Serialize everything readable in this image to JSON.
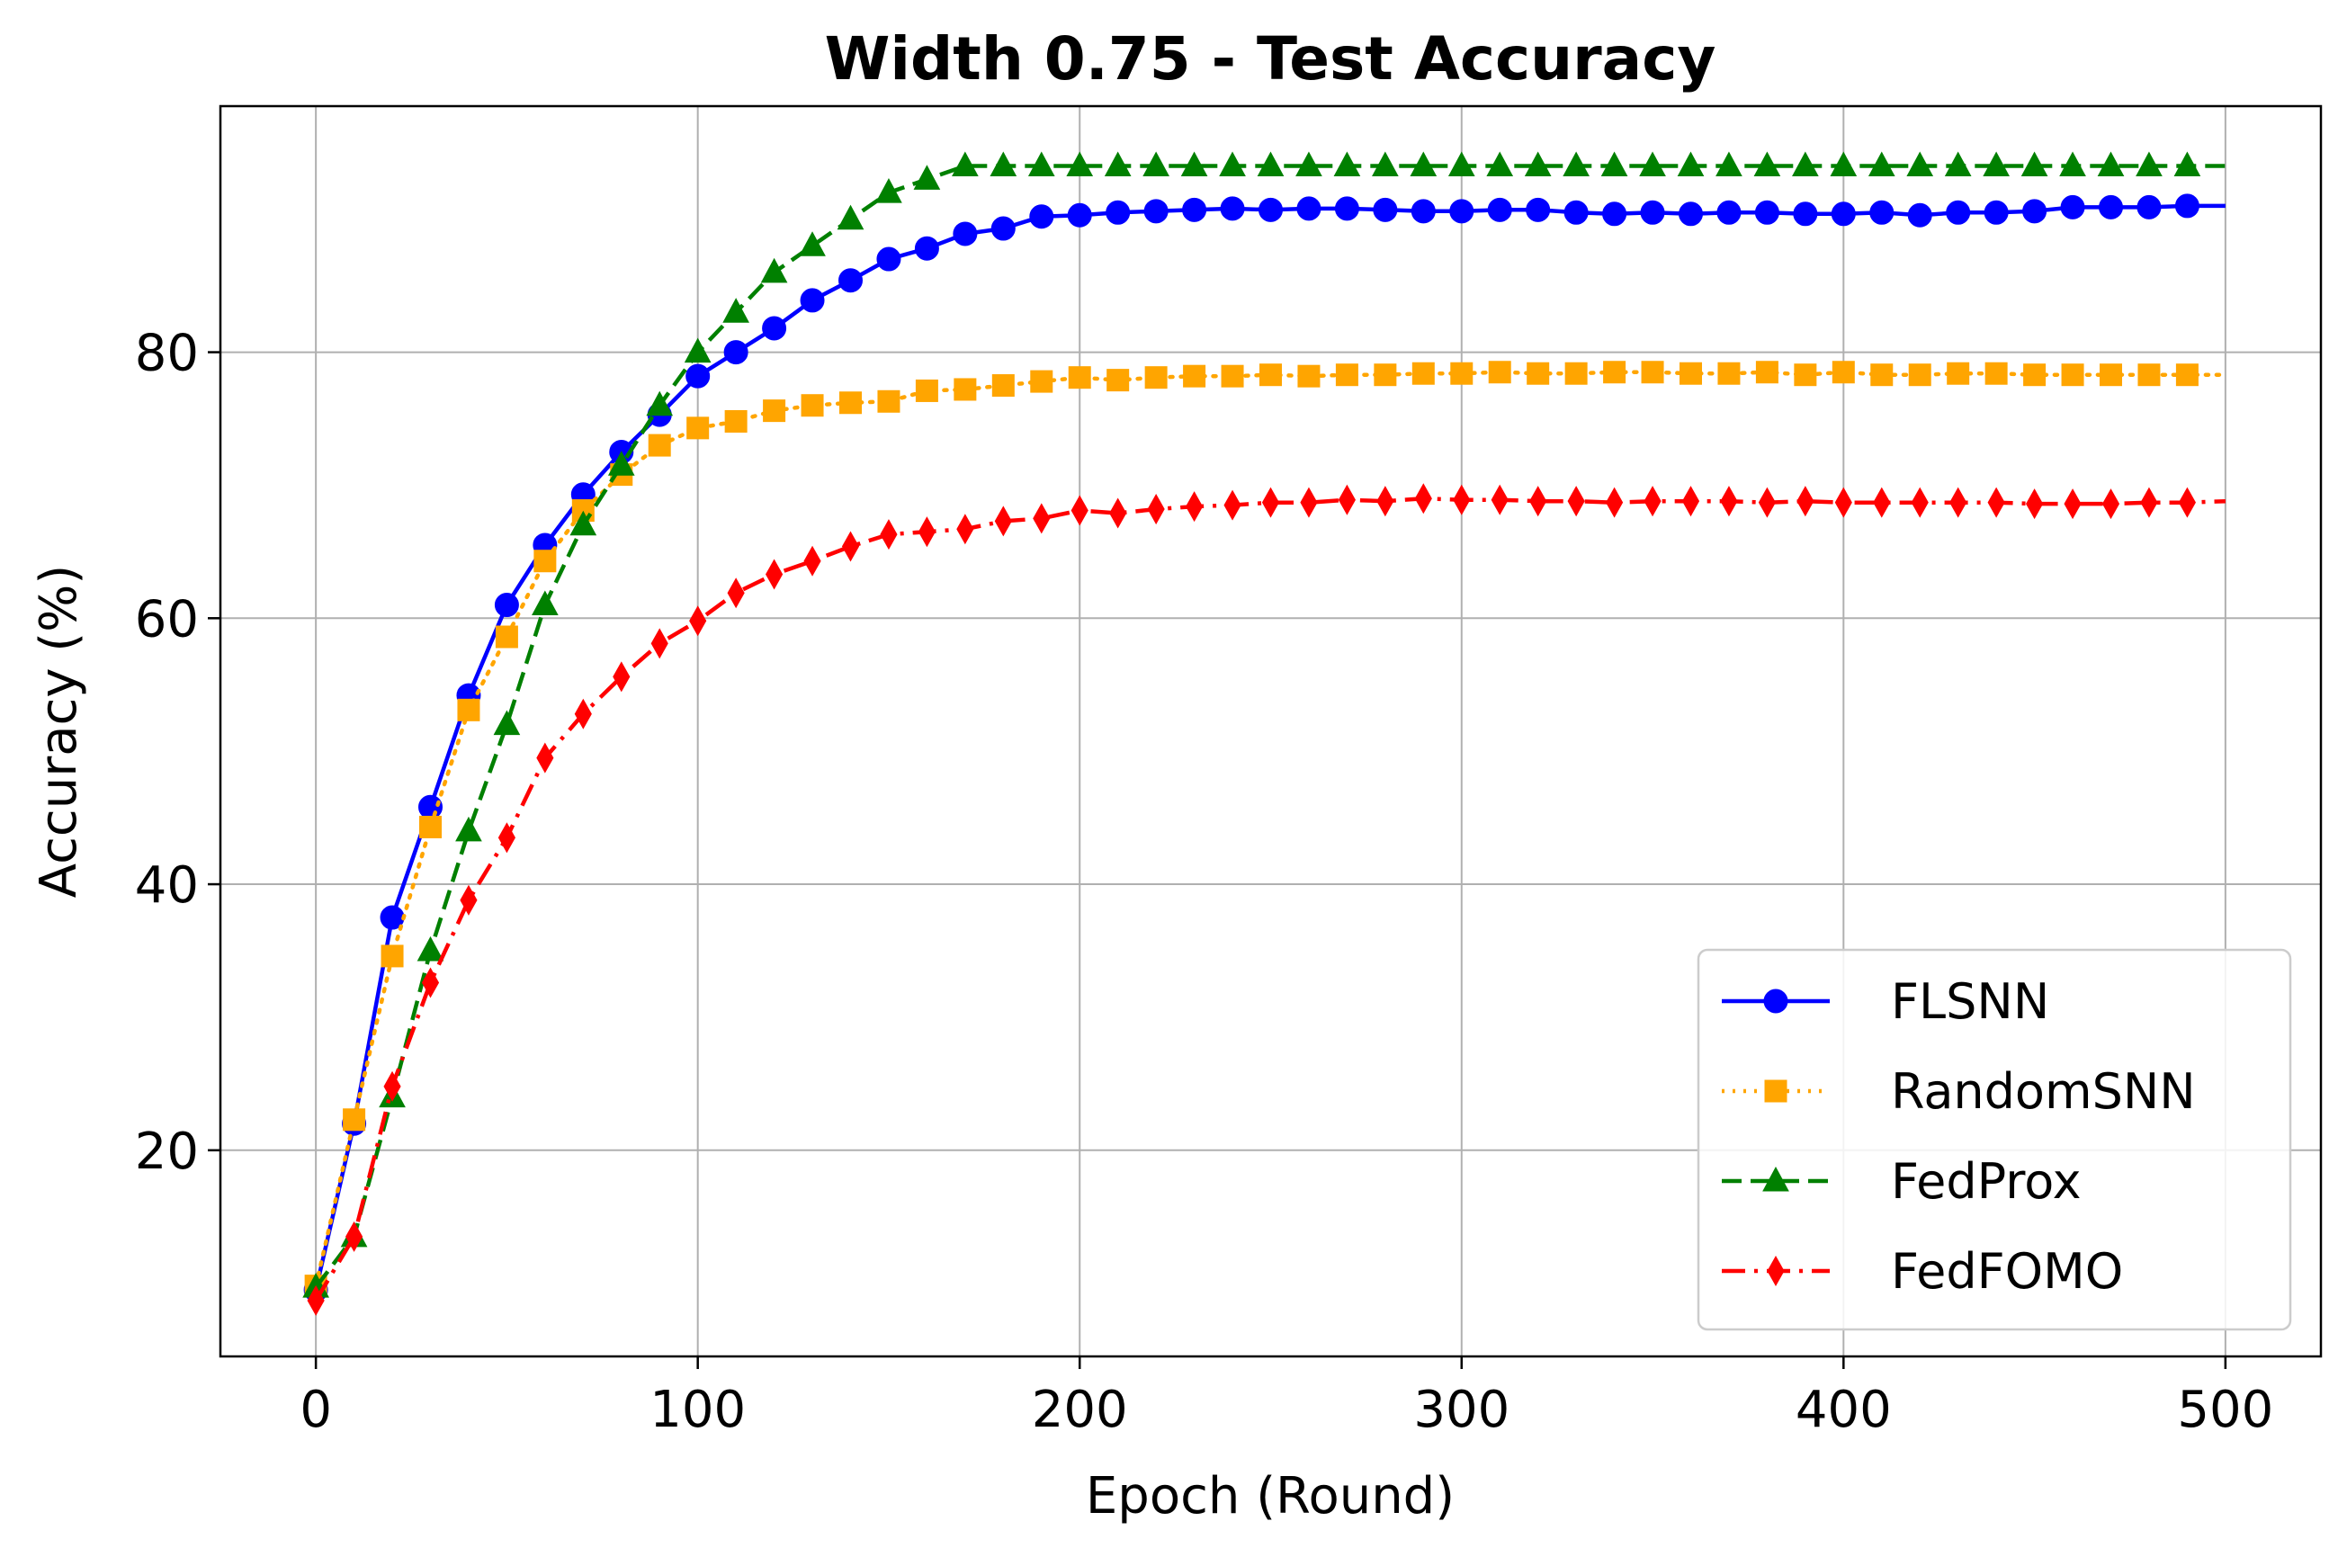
{
  "chart_data": {
    "type": "line",
    "title": "Width 0.75 - Test Accuracy",
    "xlabel": "Epoch (Round)",
    "ylabel": "Accuracy (%)",
    "xlim": [
      -25,
      525
    ],
    "ylim": [
      4.5,
      98.5
    ],
    "xticks": [
      0,
      100,
      200,
      300,
      400,
      500
    ],
    "yticks": [
      20,
      40,
      60,
      80
    ],
    "xtick_labels": [
      "0",
      "100",
      "200",
      "300",
      "400",
      "500"
    ],
    "ytick_labels": [
      "20",
      "40",
      "60",
      "80"
    ],
    "grid": true,
    "legend_position": "lower-right",
    "series": [
      {
        "name": "FLSNN",
        "color": "#0000ff",
        "line_style": "solid",
        "marker": "circle",
        "x": [
          0,
          10,
          20,
          30,
          40,
          50,
          60,
          70,
          80,
          90,
          100,
          110,
          120,
          130,
          140,
          150,
          160,
          170,
          180,
          190,
          200,
          210,
          220,
          230,
          240,
          250,
          260,
          270,
          280,
          290,
          300,
          310,
          320,
          330,
          340,
          350,
          360,
          370,
          380,
          390,
          400,
          410,
          420,
          430,
          440,
          450,
          460,
          470,
          480,
          490,
          500
        ],
        "y": [
          9.5,
          22.0,
          37.5,
          45.8,
          54.2,
          61.0,
          65.5,
          69.3,
          72.5,
          75.3,
          78.2,
          80.0,
          81.8,
          83.9,
          85.4,
          87.0,
          87.8,
          88.9,
          89.3,
          90.2,
          90.3,
          90.5,
          90.6,
          90.7,
          90.8,
          90.7,
          90.8,
          90.8,
          90.7,
          90.6,
          90.6,
          90.7,
          90.7,
          90.5,
          90.4,
          90.5,
          90.4,
          90.5,
          90.5,
          90.4,
          90.4,
          90.5,
          90.3,
          90.5,
          90.5,
          90.6,
          90.9,
          90.9,
          90.9,
          91.0,
          91.0
        ]
      },
      {
        "name": "RandomSNN",
        "color": "#ffa500",
        "line_style": "dotted",
        "marker": "square",
        "x": [
          0,
          10,
          20,
          30,
          40,
          50,
          60,
          70,
          80,
          90,
          100,
          110,
          120,
          130,
          140,
          150,
          160,
          170,
          180,
          190,
          200,
          210,
          220,
          230,
          240,
          250,
          260,
          270,
          280,
          290,
          300,
          310,
          320,
          330,
          340,
          350,
          360,
          370,
          380,
          390,
          400,
          410,
          420,
          430,
          440,
          450,
          460,
          470,
          480,
          490,
          500
        ],
        "y": [
          9.8,
          22.3,
          34.6,
          44.3,
          53.1,
          58.6,
          64.3,
          68.1,
          70.8,
          73.0,
          74.3,
          74.8,
          75.6,
          76.0,
          76.2,
          76.3,
          77.1,
          77.2,
          77.5,
          77.8,
          78.1,
          77.9,
          78.1,
          78.2,
          78.2,
          78.3,
          78.2,
          78.3,
          78.3,
          78.4,
          78.4,
          78.5,
          78.4,
          78.4,
          78.5,
          78.5,
          78.4,
          78.4,
          78.5,
          78.3,
          78.5,
          78.3,
          78.3,
          78.4,
          78.4,
          78.3,
          78.3,
          78.3,
          78.3,
          78.3,
          78.3
        ]
      },
      {
        "name": "FedProx",
        "color": "#008000",
        "line_style": "dashed",
        "marker": "triangle-up",
        "x": [
          0,
          10,
          20,
          30,
          40,
          50,
          60,
          70,
          80,
          90,
          100,
          110,
          120,
          130,
          140,
          150,
          160,
          170,
          180,
          190,
          200,
          210,
          220,
          230,
          240,
          250,
          260,
          270,
          280,
          290,
          300,
          310,
          320,
          330,
          340,
          350,
          360,
          370,
          380,
          390,
          400,
          410,
          420,
          430,
          440,
          450,
          460,
          470,
          480,
          490,
          500
        ],
        "y": [
          9.7,
          13.5,
          24.0,
          35.0,
          44.0,
          52.0,
          61.0,
          67.0,
          71.5,
          76.0,
          80.0,
          83.0,
          86.0,
          88.0,
          90.0,
          92.0,
          93.0,
          94.0,
          94.0,
          94.0,
          94.0,
          94.0,
          94.0,
          94.0,
          94.0,
          94.0,
          94.0,
          94.0,
          94.0,
          94.0,
          94.0,
          94.0,
          94.0,
          94.0,
          94.0,
          94.0,
          94.0,
          94.0,
          94.0,
          94.0,
          94.0,
          94.0,
          94.0,
          94.0,
          94.0,
          94.0,
          94.0,
          94.0,
          94.0,
          94.0,
          94.0
        ]
      },
      {
        "name": "FedFOMO",
        "color": "#ff0000",
        "line_style": "dashdot",
        "marker": "thin-diamond",
        "x": [
          0,
          10,
          20,
          30,
          40,
          50,
          60,
          70,
          80,
          90,
          100,
          110,
          120,
          130,
          140,
          150,
          160,
          170,
          180,
          190,
          200,
          210,
          220,
          230,
          240,
          250,
          260,
          270,
          280,
          290,
          300,
          310,
          320,
          330,
          340,
          350,
          360,
          370,
          380,
          390,
          400,
          410,
          420,
          430,
          440,
          450,
          460,
          470,
          480,
          490,
          500
        ],
        "y": [
          8.7,
          13.5,
          24.8,
          32.6,
          38.8,
          43.5,
          49.5,
          52.8,
          55.6,
          58.1,
          59.8,
          61.9,
          63.3,
          64.3,
          65.4,
          66.3,
          66.5,
          66.7,
          67.3,
          67.5,
          68.1,
          67.9,
          68.2,
          68.4,
          68.5,
          68.7,
          68.7,
          68.9,
          68.8,
          69.0,
          68.9,
          68.9,
          68.8,
          68.8,
          68.7,
          68.8,
          68.8,
          68.8,
          68.7,
          68.8,
          68.7,
          68.7,
          68.7,
          68.7,
          68.7,
          68.6,
          68.6,
          68.6,
          68.7,
          68.7,
          68.8
        ]
      }
    ]
  }
}
